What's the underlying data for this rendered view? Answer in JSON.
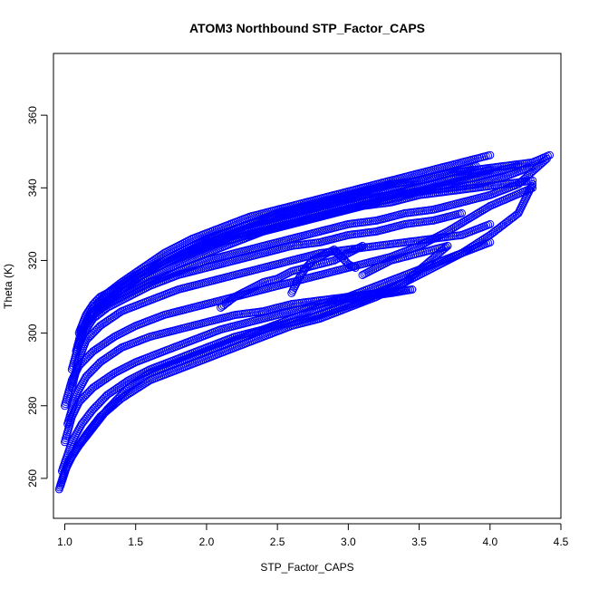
{
  "chart_data": {
    "type": "scatter",
    "title": "ATOM3 Northbound STP_Factor_CAPS",
    "xlabel": "STP_Factor_CAPS",
    "ylabel": "Theta (K)",
    "xlim": [
      0.92,
      4.5
    ],
    "ylim": [
      249,
      377
    ],
    "x_ticks": [
      "1.0",
      "1.5",
      "2.0",
      "2.5",
      "3.0",
      "3.5",
      "4.0",
      "4.5"
    ],
    "y_ticks": [
      "260",
      "280",
      "300",
      "320",
      "340",
      "360"
    ],
    "marker": "open-circle",
    "color": "#0000ff",
    "grid": false,
    "legend": "none",
    "series": [
      {
        "x": [
          0.96,
          1.0,
          1.05,
          1.1,
          1.18,
          1.3,
          1.45,
          1.6,
          1.8,
          2.0,
          2.2,
          2.4,
          2.6,
          2.8,
          3.0,
          3.2,
          3.4,
          3.6,
          3.8,
          4.0
        ],
        "y": [
          257,
          262,
          266,
          269,
          273,
          279,
          285,
          289,
          292,
          295,
          298,
          301,
          304,
          307,
          310,
          313,
          316,
          319,
          322,
          325
        ]
      },
      {
        "x": [
          0.97,
          1.02,
          1.08,
          1.15,
          1.25,
          1.4,
          1.6,
          1.8,
          2.0,
          2.2,
          2.4,
          2.6,
          2.8,
          3.0,
          3.2,
          3.4,
          3.6,
          3.8,
          4.0,
          4.2,
          4.3
        ],
        "y": [
          258,
          264,
          268,
          272,
          277,
          282,
          287,
          290,
          293,
          296,
          299,
          302,
          304,
          307,
          310,
          314,
          318,
          322,
          327,
          333,
          341
        ]
      },
      {
        "x": [
          0.98,
          1.05,
          1.12,
          1.2,
          1.3,
          1.45,
          1.6,
          1.8,
          2.0,
          2.2,
          2.5,
          2.8,
          3.1,
          3.4,
          3.7
        ],
        "y": [
          262,
          270,
          275,
          279,
          283,
          287,
          290,
          293,
          296,
          299,
          302,
          305,
          309,
          314,
          324
        ]
      },
      {
        "x": [
          1.0,
          1.05,
          1.1,
          1.2,
          1.35,
          1.5,
          1.7,
          1.9,
          2.1,
          2.3,
          2.5,
          2.7,
          2.9,
          3.1,
          3.3,
          3.45
        ],
        "y": [
          270,
          277,
          281,
          285,
          289,
          292,
          295,
          298,
          301,
          303,
          305,
          307,
          309,
          310,
          311,
          312
        ]
      },
      {
        "x": [
          1.02,
          1.08,
          1.15,
          1.25,
          1.4,
          1.6,
          1.8,
          2.0,
          2.2,
          2.4,
          2.6,
          2.8,
          3.0,
          3.2,
          3.45
        ],
        "y": [
          275,
          283,
          288,
          292,
          296,
          299,
          301,
          303,
          305,
          306,
          308,
          309,
          310,
          311,
          312
        ]
      },
      {
        "x": [
          1.0,
          1.05,
          1.1,
          1.2,
          1.35,
          1.5,
          1.7,
          1.9,
          2.1,
          2.3,
          2.5,
          2.7,
          2.9,
          3.1,
          3.3,
          3.5,
          3.7,
          4.0,
          4.3
        ],
        "y": [
          280,
          287,
          291,
          295,
          299,
          302,
          305,
          307,
          309,
          311,
          313,
          315,
          317,
          319,
          321,
          324,
          328,
          335,
          340
        ]
      },
      {
        "x": [
          1.05,
          1.1,
          1.15,
          1.25,
          1.4,
          1.6,
          1.8,
          2.0,
          2.2,
          2.4,
          2.6,
          2.8,
          3.0,
          3.2,
          3.4,
          3.6,
          3.8,
          4.0
        ],
        "y": [
          285,
          293,
          298,
          302,
          306,
          309,
          312,
          314,
          316,
          318,
          320,
          322,
          323,
          324,
          325,
          326,
          327,
          330
        ]
      },
      {
        "x": [
          1.05,
          1.1,
          1.15,
          1.2,
          1.3,
          1.45,
          1.6,
          1.8,
          2.0,
          2.2,
          2.4,
          2.6,
          2.8,
          3.0,
          3.2,
          3.4,
          3.6,
          3.8
        ],
        "y": [
          290,
          297,
          301,
          304,
          307,
          310,
          313,
          316,
          318,
          320,
          322,
          324,
          325,
          327,
          328,
          330,
          331,
          333
        ]
      },
      {
        "x": [
          1.08,
          1.12,
          1.2,
          1.3,
          1.45,
          1.6,
          1.8,
          2.0,
          2.2,
          2.4,
          2.6,
          2.8,
          3.0,
          3.2,
          3.4,
          3.6,
          3.8,
          4.0,
          4.2,
          4.4
        ],
        "y": [
          295,
          301,
          305,
          308,
          311,
          314,
          317,
          320,
          322,
          324,
          326,
          328,
          330,
          331,
          333,
          334,
          336,
          338,
          341,
          348
        ]
      },
      {
        "x": [
          1.1,
          1.15,
          1.2,
          1.3,
          1.4,
          1.5,
          1.7,
          1.9,
          2.1,
          2.3,
          2.5,
          2.7,
          2.9,
          3.1,
          3.3,
          3.5,
          3.7,
          3.9,
          4.1,
          4.3
        ],
        "y": [
          297,
          303,
          306,
          309,
          312,
          315,
          319,
          322,
          325,
          327,
          329,
          331,
          333,
          335,
          336,
          338,
          339,
          340,
          341,
          342
        ]
      },
      {
        "x": [
          1.1,
          1.15,
          1.2,
          1.25,
          1.35,
          1.5,
          1.7,
          1.9,
          2.1,
          2.3,
          2.5,
          2.7,
          2.9,
          3.1,
          3.3,
          3.5,
          3.7,
          3.9,
          4.1,
          4.3,
          4.42
        ],
        "y": [
          300,
          305,
          308,
          310,
          312,
          316,
          320,
          324,
          327,
          330,
          333,
          335,
          337,
          339,
          341,
          342,
          344,
          345,
          346,
          347,
          349
        ]
      },
      {
        "x": [
          1.15,
          1.2,
          1.25,
          1.3,
          1.4,
          1.55,
          1.7,
          1.9,
          2.1,
          2.3,
          2.5,
          2.7,
          2.9,
          3.1,
          3.3,
          3.5,
          3.7,
          3.9,
          4.0
        ],
        "y": [
          303,
          307,
          309,
          311,
          314,
          318,
          322,
          326,
          329,
          332,
          334,
          336,
          338,
          340,
          342,
          344,
          346,
          348,
          349
        ]
      },
      {
        "x": [
          1.2,
          1.3,
          1.4,
          1.55,
          1.7,
          1.9,
          2.1,
          2.3,
          2.5,
          2.7,
          2.9,
          3.1,
          3.3,
          3.5,
          3.7,
          3.9,
          4.1,
          4.3
        ],
        "y": [
          305,
          309,
          312,
          316,
          319,
          323,
          326,
          329,
          331,
          333,
          335,
          337,
          338,
          339,
          340,
          341,
          343,
          346
        ]
      },
      {
        "x": [
          1.25,
          1.35,
          1.5,
          1.65,
          1.8,
          2.0,
          2.2,
          2.4,
          2.6,
          2.8,
          3.0,
          3.2,
          3.4,
          3.6,
          3.8,
          4.0,
          4.2
        ],
        "y": [
          307,
          310,
          313,
          316,
          319,
          322,
          325,
          328,
          330,
          332,
          334,
          336,
          338,
          340,
          342,
          344,
          346
        ]
      },
      {
        "x": [
          1.3,
          1.4,
          1.55,
          1.7,
          1.85,
          2.0,
          2.2,
          2.4,
          2.6,
          2.8,
          3.0,
          3.2,
          3.4,
          3.6,
          3.8,
          4.0
        ],
        "y": [
          309,
          312,
          316,
          319,
          322,
          324,
          327,
          329,
          331,
          333,
          335,
          337,
          339,
          341,
          343,
          345
        ]
      },
      {
        "x": [
          1.4,
          1.55,
          1.7,
          1.85,
          2.0,
          2.15,
          2.3,
          2.5,
          2.7,
          2.9,
          3.1,
          3.3,
          3.5,
          3.7,
          3.9
        ],
        "y": [
          312,
          316,
          320,
          323,
          326,
          328,
          330,
          332,
          334,
          336,
          338,
          340,
          342,
          344,
          346
        ]
      },
      {
        "x": [
          2.1,
          2.2,
          2.3,
          2.4,
          2.5,
          2.6,
          2.7,
          2.8,
          2.9,
          3.0,
          3.1
        ],
        "y": [
          307,
          310,
          312,
          314,
          315,
          317,
          318,
          319,
          320,
          322,
          324
        ]
      },
      {
        "x": [
          2.6,
          2.65,
          2.7,
          2.75,
          2.8,
          2.85,
          2.9,
          2.95,
          3.0,
          3.05
        ],
        "y": [
          311,
          315,
          318,
          320,
          321,
          322,
          323,
          321,
          319,
          318
        ]
      },
      {
        "x": [
          3.1,
          3.2,
          3.3,
          3.4,
          3.5,
          3.6,
          3.7
        ],
        "y": [
          316,
          318,
          320,
          321,
          322,
          323,
          324
        ]
      }
    ]
  }
}
